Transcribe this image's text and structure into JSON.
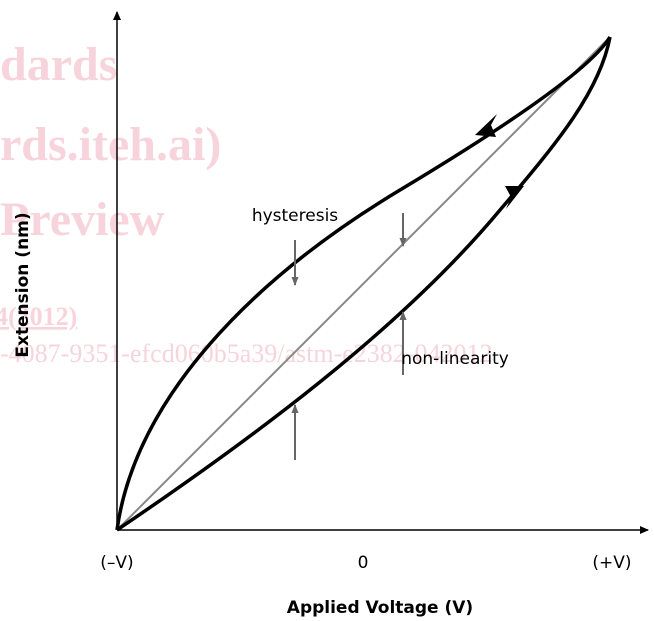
{
  "x_axis": {
    "label": "Applied Voltage (V)",
    "ticks": [
      "(–V)",
      "0",
      "(+V)"
    ]
  },
  "y_axis": {
    "label": "Extension (nm)"
  },
  "annotations": [
    "hysteresis",
    "non-linearity"
  ],
  "watermark": [
    "dards",
    "rds.iteh.ai)",
    "Preview",
    "4(2012)",
    "-4087-9351-efcd060b5a39/astm-e2382-042012"
  ]
}
